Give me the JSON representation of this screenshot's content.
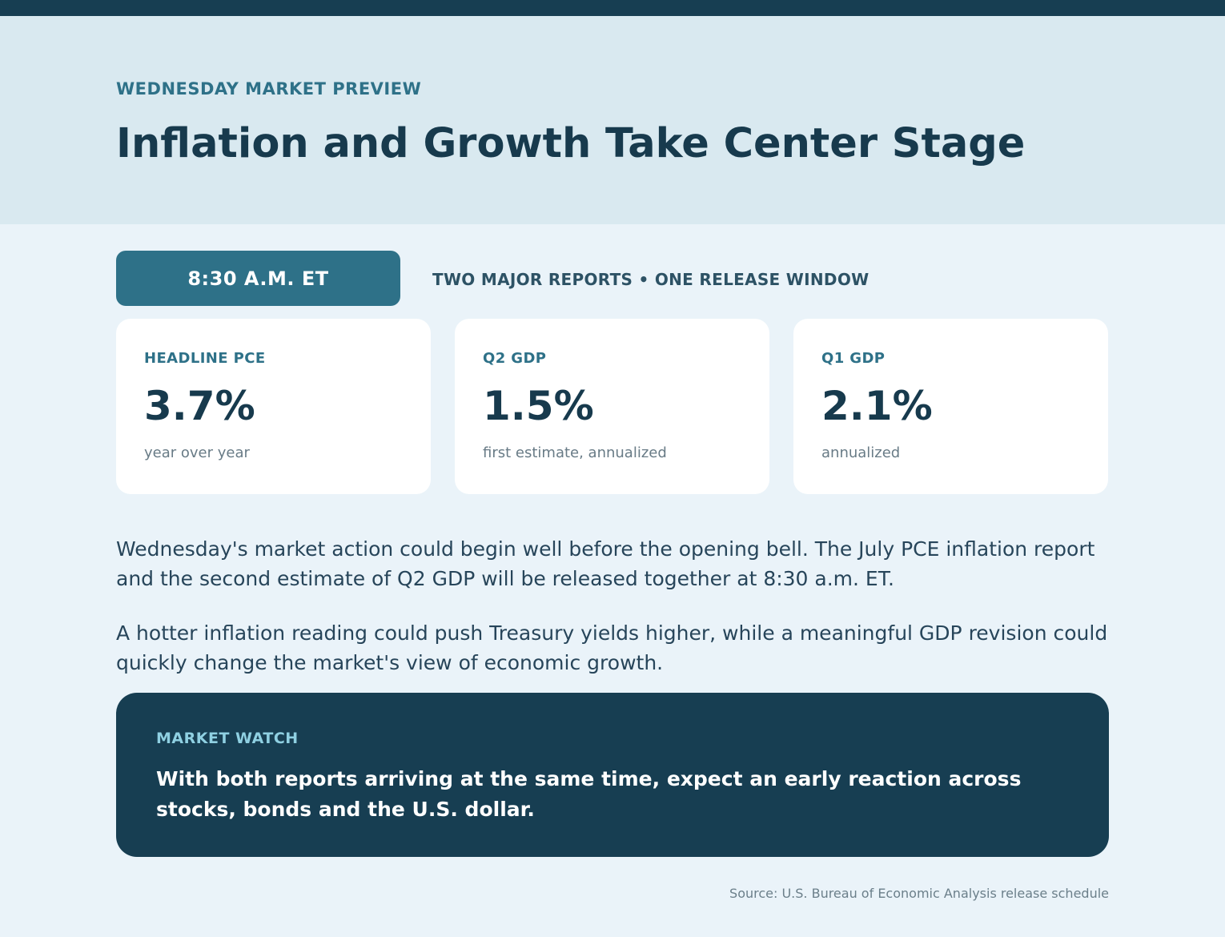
{
  "header": {
    "kicker": "WEDNESDAY MARKET PREVIEW",
    "title": "Inflation and Growth Take Center Stage"
  },
  "release": {
    "time": "8:30 A.M. ET",
    "note": "TWO MAJOR REPORTS • ONE RELEASE WINDOW"
  },
  "cards": [
    {
      "label": "HEADLINE PCE",
      "value": "3.7%",
      "sub": "year over year"
    },
    {
      "label": "Q2 GDP",
      "value": "1.5%",
      "sub": "first estimate, annualized"
    },
    {
      "label": "Q1 GDP",
      "value": "2.1%",
      "sub": "annualized"
    }
  ],
  "body": {
    "paragraph_1": "Wednesday's market action could begin well before the opening bell. The July PCE inflation report and the second estimate of Q2 GDP will be released together at 8:30 a.m. ET.",
    "paragraph_2": "A hotter inflation reading could push Treasury yields higher, while a meaningful GDP revision could quickly change the market's view of economic growth."
  },
  "market_watch": {
    "label": "MARKET WATCH",
    "text": "With both reports arriving at the same time, expect an early reaction across stocks, bonds and the U.S. dollar."
  },
  "source": "Source: U.S. Bureau of Economic Analysis release schedule",
  "colors": {
    "accent": "#2e7188",
    "dark": "#173e52",
    "hero_bg": "#d9e9f0",
    "page_bg": "#eaf3f9"
  }
}
